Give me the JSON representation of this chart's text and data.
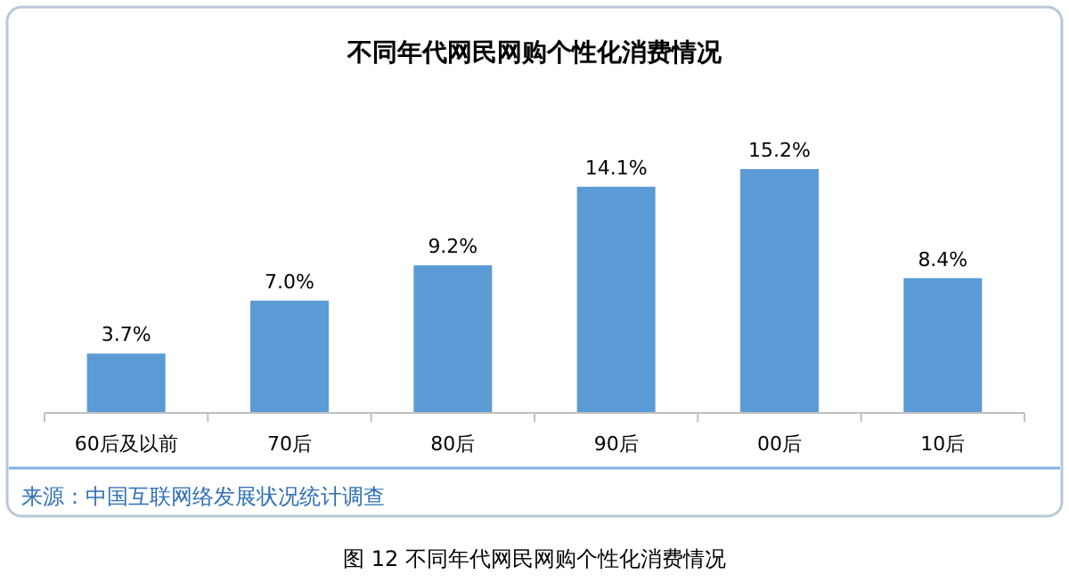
{
  "chart_data": {
    "type": "bar",
    "title": "不同年代网民网购个性化消费情况",
    "categories": [
      "60后及以前",
      "70后",
      "80后",
      "90后",
      "00后",
      "10后"
    ],
    "values": [
      3.7,
      7.0,
      9.2,
      14.1,
      15.2,
      8.4
    ],
    "value_labels": [
      "3.7%",
      "7.0%",
      "9.2%",
      "14.1%",
      "15.2%",
      "8.4%"
    ],
    "color": "#5b9bd5",
    "annotations": [
      "来源：中国互联网络发展状况统计调查",
      "图 12  不同年代网民网购个性化消费情况"
    ]
  }
}
